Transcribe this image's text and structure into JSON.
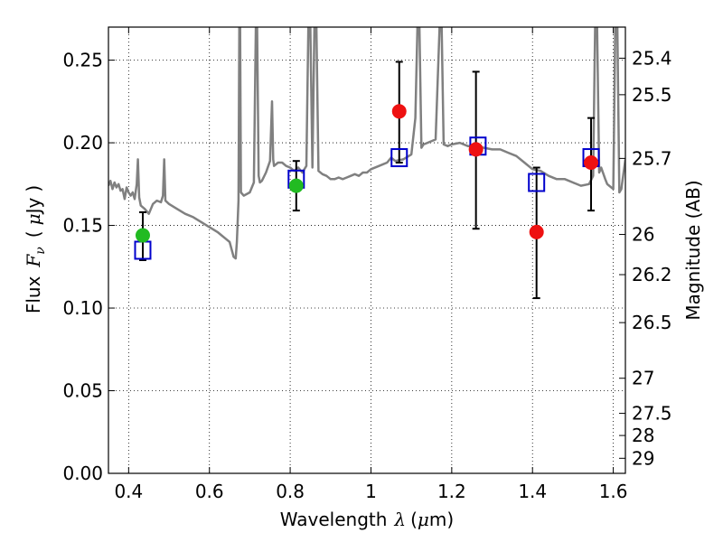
{
  "chart_data": {
    "type": "scatter",
    "xlabel_text": "Wavelength",
    "xlabel_symbol": "λ",
    "xlabel_unit_open": "(",
    "xlabel_unit_mu": "μ",
    "xlabel_unit_rest": "m)",
    "ylabel_text": "Flux",
    "ylabel_symbol_F": "F",
    "ylabel_symbol_sub": "ν",
    "ylabel_unit_open": "(",
    "ylabel_unit_mu": "μ",
    "ylabel_unit_rest": "Jy",
    "ylabel_unit_close": ")",
    "y2label": "Magnitude (AB)",
    "xlim": [
      0.35,
      1.63
    ],
    "ylim": [
      0.0,
      0.27
    ],
    "grid": true,
    "x_ticks": [
      {
        "value": 0.4,
        "label": "0.4"
      },
      {
        "value": 0.6,
        "label": "0.6"
      },
      {
        "value": 0.8,
        "label": "0.8"
      },
      {
        "value": 1.0,
        "label": "1"
      },
      {
        "value": 1.2,
        "label": "1.2"
      },
      {
        "value": 1.4,
        "label": "1.4"
      },
      {
        "value": 1.6,
        "label": "1.6"
      }
    ],
    "y_ticks": [
      {
        "value": 0.0,
        "label": "0.00"
      },
      {
        "value": 0.05,
        "label": "0.05"
      },
      {
        "value": 0.1,
        "label": "0.10"
      },
      {
        "value": 0.15,
        "label": "0.15"
      },
      {
        "value": 0.2,
        "label": "0.20"
      },
      {
        "value": 0.25,
        "label": "0.25"
      }
    ],
    "y2_ticks": [
      {
        "mag": 25.4,
        "label": "25.4"
      },
      {
        "mag": 25.5,
        "label": "25.5"
      },
      {
        "mag": 25.7,
        "label": "25.7"
      },
      {
        "mag": 26,
        "label": "26"
      },
      {
        "mag": 26.2,
        "label": "26.2"
      },
      {
        "mag": 26.5,
        "label": "26.5"
      },
      {
        "mag": 27,
        "label": "27"
      },
      {
        "mag": 27.5,
        "label": "27.5"
      },
      {
        "mag": 28,
        "label": "28"
      },
      {
        "mag": 29,
        "label": "29"
      }
    ],
    "template_color": "#808080",
    "template_spectrum": [
      [
        0.35,
        0.174
      ],
      [
        0.355,
        0.177
      ],
      [
        0.36,
        0.172
      ],
      [
        0.365,
        0.176
      ],
      [
        0.37,
        0.173
      ],
      [
        0.375,
        0.175
      ],
      [
        0.38,
        0.171
      ],
      [
        0.385,
        0.172
      ],
      [
        0.39,
        0.166
      ],
      [
        0.395,
        0.173
      ],
      [
        0.4,
        0.17
      ],
      [
        0.405,
        0.168
      ],
      [
        0.41,
        0.17
      ],
      [
        0.415,
        0.166
      ],
      [
        0.42,
        0.175
      ],
      [
        0.423,
        0.19
      ],
      [
        0.426,
        0.167
      ],
      [
        0.43,
        0.162
      ],
      [
        0.44,
        0.16
      ],
      [
        0.45,
        0.157
      ],
      [
        0.46,
        0.163
      ],
      [
        0.47,
        0.165
      ],
      [
        0.48,
        0.164
      ],
      [
        0.485,
        0.168
      ],
      [
        0.488,
        0.19
      ],
      [
        0.491,
        0.165
      ],
      [
        0.5,
        0.163
      ],
      [
        0.52,
        0.16
      ],
      [
        0.54,
        0.157
      ],
      [
        0.56,
        0.155
      ],
      [
        0.58,
        0.152
      ],
      [
        0.6,
        0.149
      ],
      [
        0.62,
        0.146
      ],
      [
        0.63,
        0.144
      ],
      [
        0.64,
        0.142
      ],
      [
        0.65,
        0.14
      ],
      [
        0.66,
        0.131
      ],
      [
        0.665,
        0.13
      ],
      [
        0.668,
        0.14
      ],
      [
        0.672,
        0.165
      ],
      [
        0.674,
        0.27
      ],
      [
        0.676,
        0.27
      ],
      [
        0.678,
        0.17
      ],
      [
        0.685,
        0.168
      ],
      [
        0.7,
        0.17
      ],
      [
        0.71,
        0.176
      ],
      [
        0.715,
        0.27
      ],
      [
        0.718,
        0.27
      ],
      [
        0.722,
        0.18
      ],
      [
        0.725,
        0.176
      ],
      [
        0.73,
        0.177
      ],
      [
        0.74,
        0.182
      ],
      [
        0.75,
        0.189
      ],
      [
        0.755,
        0.225
      ],
      [
        0.758,
        0.19
      ],
      [
        0.76,
        0.186
      ],
      [
        0.77,
        0.188
      ],
      [
        0.78,
        0.188
      ],
      [
        0.79,
        0.186
      ],
      [
        0.8,
        0.185
      ],
      [
        0.81,
        0.183
      ],
      [
        0.82,
        0.185
      ],
      [
        0.83,
        0.182
      ],
      [
        0.84,
        0.186
      ],
      [
        0.845,
        0.27
      ],
      [
        0.85,
        0.27
      ],
      [
        0.855,
        0.185
      ],
      [
        0.86,
        0.27
      ],
      [
        0.865,
        0.27
      ],
      [
        0.87,
        0.183
      ],
      [
        0.88,
        0.181
      ],
      [
        0.89,
        0.18
      ],
      [
        0.9,
        0.178
      ],
      [
        0.91,
        0.178
      ],
      [
        0.92,
        0.179
      ],
      [
        0.93,
        0.178
      ],
      [
        0.94,
        0.179
      ],
      [
        0.95,
        0.18
      ],
      [
        0.96,
        0.181
      ],
      [
        0.97,
        0.18
      ],
      [
        0.98,
        0.182
      ],
      [
        0.99,
        0.182
      ],
      [
        1.0,
        0.184
      ],
      [
        1.02,
        0.186
      ],
      [
        1.04,
        0.188
      ],
      [
        1.05,
        0.191
      ],
      [
        1.06,
        0.189
      ],
      [
        1.08,
        0.19
      ],
      [
        1.1,
        0.193
      ],
      [
        1.11,
        0.215
      ],
      [
        1.115,
        0.27
      ],
      [
        1.12,
        0.27
      ],
      [
        1.125,
        0.197
      ],
      [
        1.13,
        0.199
      ],
      [
        1.14,
        0.2
      ],
      [
        1.16,
        0.202
      ],
      [
        1.17,
        0.27
      ],
      [
        1.175,
        0.27
      ],
      [
        1.18,
        0.199
      ],
      [
        1.19,
        0.198
      ],
      [
        1.2,
        0.199
      ],
      [
        1.22,
        0.2
      ],
      [
        1.24,
        0.198
      ],
      [
        1.26,
        0.198
      ],
      [
        1.28,
        0.197
      ],
      [
        1.3,
        0.196
      ],
      [
        1.32,
        0.196
      ],
      [
        1.34,
        0.194
      ],
      [
        1.36,
        0.192
      ],
      [
        1.38,
        0.188
      ],
      [
        1.4,
        0.184
      ],
      [
        1.42,
        0.183
      ],
      [
        1.44,
        0.18
      ],
      [
        1.46,
        0.178
      ],
      [
        1.48,
        0.178
      ],
      [
        1.5,
        0.176
      ],
      [
        1.52,
        0.174
      ],
      [
        1.54,
        0.175
      ],
      [
        1.55,
        0.18
      ],
      [
        1.555,
        0.27
      ],
      [
        1.56,
        0.27
      ],
      [
        1.565,
        0.182
      ],
      [
        1.57,
        0.185
      ],
      [
        1.58,
        0.178
      ],
      [
        1.585,
        0.175
      ],
      [
        1.59,
        0.174
      ],
      [
        1.6,
        0.172
      ],
      [
        1.605,
        0.27
      ],
      [
        1.61,
        0.27
      ],
      [
        1.615,
        0.17
      ],
      [
        1.62,
        0.172
      ],
      [
        1.63,
        0.19
      ]
    ],
    "series": [
      {
        "marker": "square-open",
        "color": "#0000cc",
        "points": [
          {
            "x": 0.435,
            "y": 0.135
          },
          {
            "x": 0.815,
            "y": 0.178
          },
          {
            "x": 1.07,
            "y": 0.191
          },
          {
            "x": 1.265,
            "y": 0.198
          },
          {
            "x": 1.41,
            "y": 0.176
          },
          {
            "x": 1.545,
            "y": 0.191
          }
        ]
      },
      {
        "marker": "circle",
        "color": "#22bb22",
        "points": [
          {
            "x": 0.435,
            "y": 0.144
          },
          {
            "x": 0.815,
            "y": 0.174
          }
        ]
      },
      {
        "marker": "circle",
        "color": "#ee1111",
        "points": [
          {
            "x": 1.07,
            "y": 0.219
          },
          {
            "x": 1.26,
            "y": 0.196
          },
          {
            "x": 1.41,
            "y": 0.146
          },
          {
            "x": 1.545,
            "y": 0.188
          }
        ]
      }
    ],
    "error_bars": [
      {
        "x": 0.435,
        "lo": 0.129,
        "hi": 0.158
      },
      {
        "x": 0.815,
        "lo": 0.159,
        "hi": 0.189
      },
      {
        "x": 1.07,
        "lo": 0.188,
        "hi": 0.249
      },
      {
        "x": 1.26,
        "lo": 0.148,
        "hi": 0.243
      },
      {
        "x": 1.41,
        "lo": 0.106,
        "hi": 0.185
      },
      {
        "x": 1.545,
        "lo": 0.159,
        "hi": 0.215
      }
    ]
  }
}
